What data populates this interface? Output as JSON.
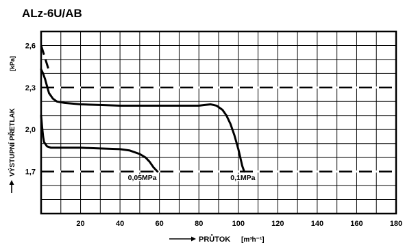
{
  "chart_data": {
    "type": "line",
    "title": "ALz-6U/AB",
    "xlabel": "PRŮTOK",
    "xlabel_unit": "[m³h⁻¹]",
    "ylabel": "VÝSTUPNÍ PŘETLAK",
    "ylabel_unit": "[kPa]",
    "xlim": [
      0,
      180
    ],
    "ylim": [
      1.4,
      2.7
    ],
    "x_ticks": [
      20,
      40,
      60,
      80,
      100,
      120,
      140,
      160,
      180
    ],
    "y_ticks": [
      1.7,
      2.0,
      2.3,
      2.6
    ],
    "x_tick_labels": [
      "20",
      "40",
      "60",
      "80",
      "100",
      "120",
      "140",
      "160",
      "180"
    ],
    "y_tick_labels": [
      "1,7",
      "2,0",
      "2,3",
      "2,6"
    ],
    "grid": true,
    "x_grid_step": 10,
    "y_grid_step": 0.1,
    "reference_lines": [
      {
        "y": 2.3,
        "style": "dashed"
      },
      {
        "y": 1.7,
        "style": "dashed"
      }
    ],
    "series": [
      {
        "name": "0,05MPa",
        "label_at": [
          44,
          1.64
        ],
        "x": [
          0,
          0.5,
          1,
          1.5,
          3,
          5,
          10,
          20,
          30,
          40,
          45,
          50,
          53,
          55,
          57,
          59
        ],
        "y": [
          2.1,
          2.02,
          1.95,
          1.91,
          1.88,
          1.87,
          1.87,
          1.87,
          1.865,
          1.86,
          1.85,
          1.825,
          1.8,
          1.77,
          1.73,
          1.7
        ]
      },
      {
        "name": "0,1MPa",
        "label_at": [
          96,
          1.64
        ],
        "x": [
          0,
          1,
          2,
          3,
          4,
          6,
          8,
          12,
          20,
          40,
          60,
          80,
          86,
          89,
          92,
          94,
          96,
          98,
          100,
          101,
          102,
          103
        ],
        "y": [
          2.43,
          2.4,
          2.36,
          2.31,
          2.26,
          2.22,
          2.2,
          2.19,
          2.18,
          2.17,
          2.17,
          2.17,
          2.18,
          2.17,
          2.14,
          2.1,
          2.04,
          1.96,
          1.86,
          1.8,
          1.74,
          1.7
        ]
      },
      {
        "name": "",
        "style": "dashed",
        "x": [
          0,
          4
        ],
        "y": [
          2.6,
          2.42
        ]
      }
    ]
  }
}
